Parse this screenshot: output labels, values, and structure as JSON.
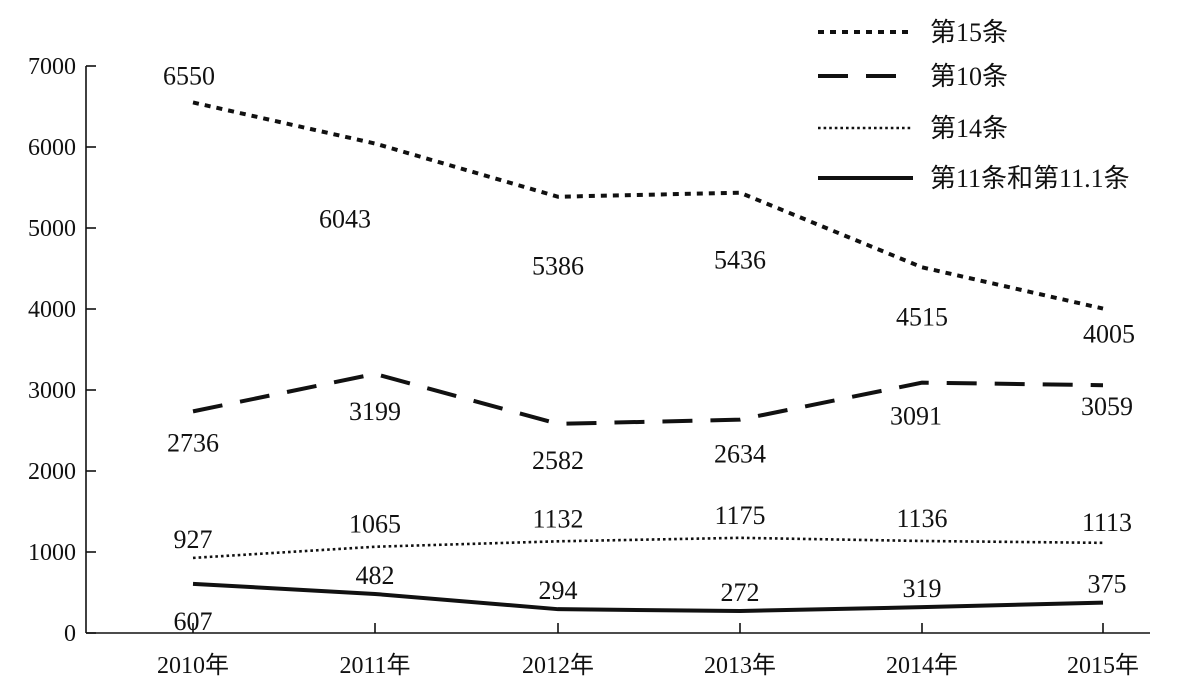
{
  "chart_data": {
    "type": "line",
    "title": "",
    "xlabel": "",
    "ylabel": "",
    "ylim": [
      0,
      7000
    ],
    "yticks": [
      0,
      1000,
      2000,
      3000,
      4000,
      5000,
      6000,
      7000
    ],
    "grid": false,
    "legend_position": "top-right",
    "categories": [
      "2010年",
      "2011年",
      "2012年",
      "2013年",
      "2014年",
      "2015年"
    ],
    "series": [
      {
        "name": "第15条",
        "style": "dotted",
        "color": "#111111",
        "values": [
          6550,
          6043,
          5386,
          5436,
          4515,
          4005
        ],
        "labels": [
          "6550",
          "6043",
          "5386",
          "5436",
          "4515",
          "4005"
        ]
      },
      {
        "name": "第10条",
        "style": "dashed",
        "color": "#111111",
        "values": [
          2736,
          3199,
          2582,
          2634,
          3091,
          3059
        ],
        "labels": [
          "2736",
          "3199",
          "2582",
          "2634",
          "3091",
          "3059"
        ]
      },
      {
        "name": "第14条",
        "style": "fine-dotted",
        "color": "#111111",
        "values": [
          927,
          1065,
          1132,
          1175,
          1136,
          1113
        ],
        "labels": [
          "927",
          "1065",
          "1132",
          "1175",
          "1136",
          "1113"
        ]
      },
      {
        "name": "第11条和第11.1条",
        "style": "solid",
        "color": "#111111",
        "values": [
          607,
          482,
          294,
          272,
          319,
          375
        ],
        "labels": [
          "607",
          "482",
          "294",
          "272",
          "319",
          "375"
        ]
      }
    ]
  }
}
